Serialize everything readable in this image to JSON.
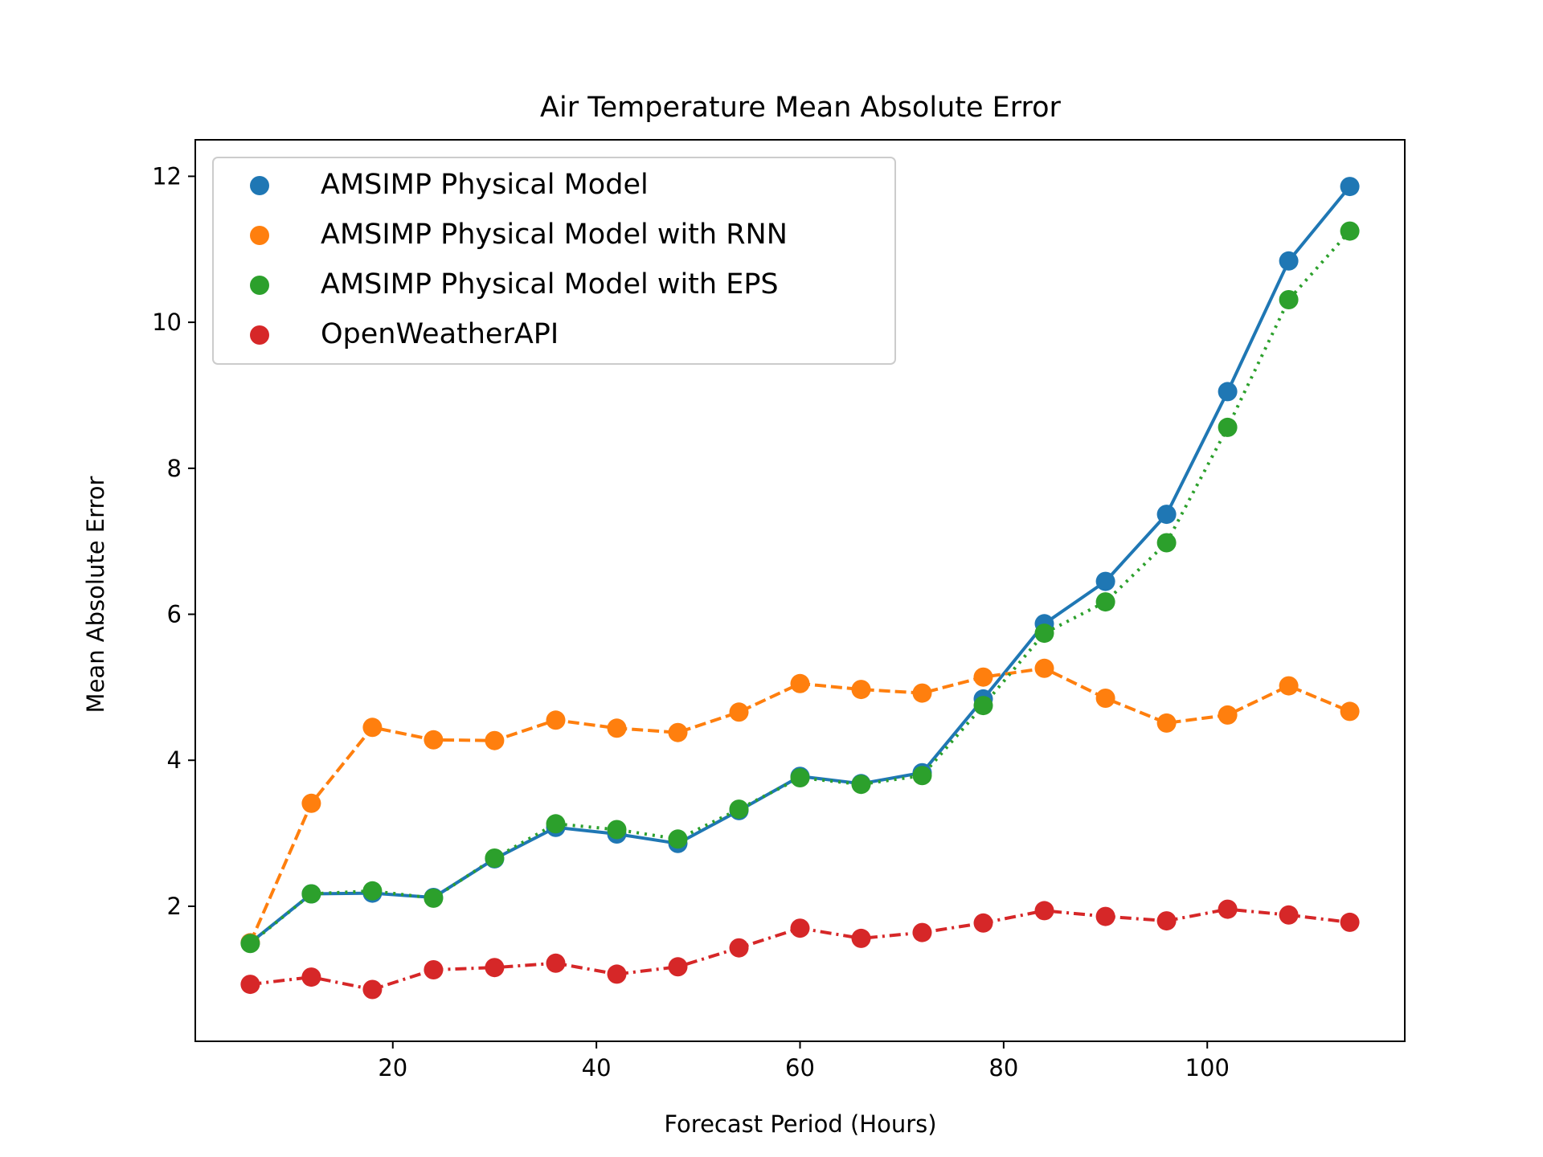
{
  "chart_data": {
    "type": "line",
    "title": "Air Temperature Mean Absolute Error",
    "xlabel": "Forecast Period (Hours)",
    "ylabel": "Mean Absolute Error",
    "xlim": [
      0.6,
      119.4
    ],
    "ylim": [
      0.15,
      12.5
    ],
    "xticks": [
      20,
      40,
      60,
      80,
      100
    ],
    "yticks": [
      2,
      4,
      6,
      8,
      10,
      12
    ],
    "grid": false,
    "legend_position": "upper-left",
    "x": [
      6,
      12,
      18,
      24,
      30,
      36,
      42,
      48,
      54,
      60,
      66,
      72,
      78,
      84,
      90,
      96,
      102,
      108,
      114
    ],
    "series": [
      {
        "name": "AMSIMP Physical Model",
        "color": "#1f77b4",
        "linestyle": "solid",
        "values": [
          1.5,
          2.17,
          2.18,
          2.12,
          2.65,
          3.08,
          2.99,
          2.86,
          3.31,
          3.78,
          3.68,
          3.83,
          4.84,
          5.87,
          6.45,
          7.37,
          9.05,
          10.84,
          11.86
        ]
      },
      {
        "name": "AMSIMP Physical Model with RNN",
        "color": "#ff7f0e",
        "linestyle": "dashed",
        "values": [
          1.5,
          3.41,
          4.45,
          4.28,
          4.27,
          4.55,
          4.44,
          4.38,
          4.66,
          5.05,
          4.97,
          4.92,
          5.14,
          5.26,
          4.85,
          4.51,
          4.62,
          5.02,
          4.67
        ]
      },
      {
        "name": "AMSIMP Physical Model with EPS",
        "color": "#2ca02c",
        "linestyle": "dotted",
        "values": [
          1.49,
          2.17,
          2.21,
          2.11,
          2.66,
          3.13,
          3.05,
          2.92,
          3.33,
          3.76,
          3.67,
          3.79,
          4.75,
          5.74,
          6.17,
          6.98,
          8.56,
          10.31,
          11.25
        ]
      },
      {
        "name": "OpenWeatherAPI",
        "color": "#d62728",
        "linestyle": "dashdot",
        "values": [
          0.93,
          1.03,
          0.86,
          1.13,
          1.16,
          1.22,
          1.07,
          1.17,
          1.43,
          1.7,
          1.56,
          1.64,
          1.77,
          1.94,
          1.86,
          1.8,
          1.96,
          1.88,
          1.78
        ]
      }
    ]
  }
}
